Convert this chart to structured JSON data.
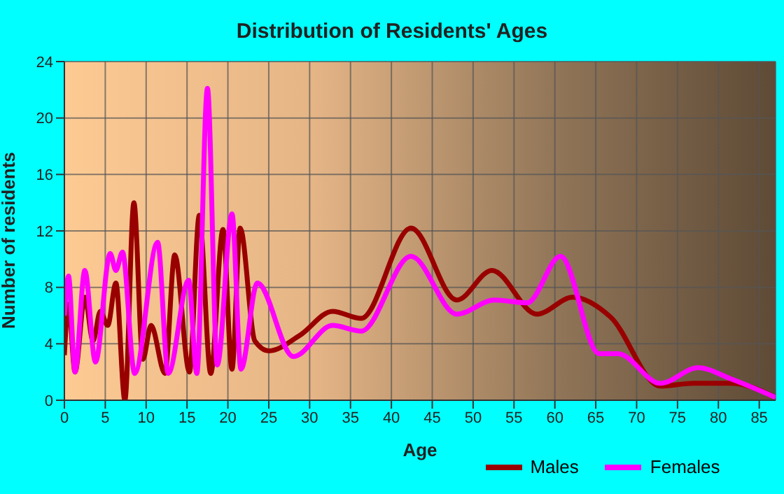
{
  "chart_data": {
    "type": "line",
    "title": "Distribution of Residents' Ages",
    "xlabel": "Age",
    "ylabel": "Number of residents",
    "xlim": [
      0,
      87
    ],
    "xticks": [
      0,
      5,
      10,
      15,
      20,
      25,
      30,
      35,
      40,
      45,
      50,
      55,
      60,
      65,
      70,
      75,
      80,
      85
    ],
    "ylim": [
      0,
      24
    ],
    "yticks": [
      0,
      4,
      8,
      12,
      16,
      20,
      24
    ],
    "grid": true,
    "legend": "bottom",
    "marker": "none",
    "line_style": "solid",
    "series": [
      {
        "name": "Males",
        "color": "#990000",
        "x": [
          0,
          0.5,
          1.3,
          2.5,
          3.5,
          4.4,
          5.3,
          6.3,
          7.4,
          8.5,
          9.6,
          10.6,
          12.3,
          13.5,
          15.3,
          16.5,
          17.9,
          19.4,
          20.5,
          21.5,
          23.3,
          25,
          28.8,
          32.8,
          36.3,
          42.4,
          48,
          52.3,
          57.8,
          62.2,
          66.8,
          72.9,
          77,
          81.6,
          87
        ],
        "values": [
          3.2,
          6.8,
          2,
          7.3,
          4.2,
          6.3,
          5.3,
          8.3,
          0,
          14,
          2.9,
          5.3,
          1.9,
          10.3,
          2,
          13.1,
          1.9,
          12.1,
          2.2,
          12.2,
          4.2,
          3.5,
          4.6,
          6.3,
          5.8,
          12.2,
          7.1,
          9.2,
          6.1,
          7.3,
          5.9,
          1,
          1.2,
          1.2,
          0.2
        ]
      },
      {
        "name": "Females",
        "color": "#ff00ff",
        "x": [
          0,
          0.5,
          1.3,
          2.5,
          3.8,
          5.6,
          6.3,
          7.1,
          8.6,
          11.4,
          12.7,
          15.2,
          16.2,
          17.5,
          18.7,
          20.5,
          21.6,
          23.6,
          28,
          32.8,
          36.3,
          42.4,
          48,
          52.6,
          56.6,
          60.7,
          65.4,
          67.7,
          72.9,
          77.5,
          81.6,
          87
        ],
        "values": [
          6,
          8.8,
          2,
          9.2,
          2.7,
          10.4,
          9.2,
          10.5,
          1.9,
          11.2,
          1.9,
          8.5,
          1.9,
          22.1,
          2.5,
          13.2,
          2.2,
          8.3,
          3.1,
          5.3,
          4.9,
          10.2,
          6.1,
          7.1,
          6.9,
          10.2,
          3.3,
          3.3,
          1.2,
          2.3,
          1.5,
          0.2
        ]
      }
    ]
  }
}
